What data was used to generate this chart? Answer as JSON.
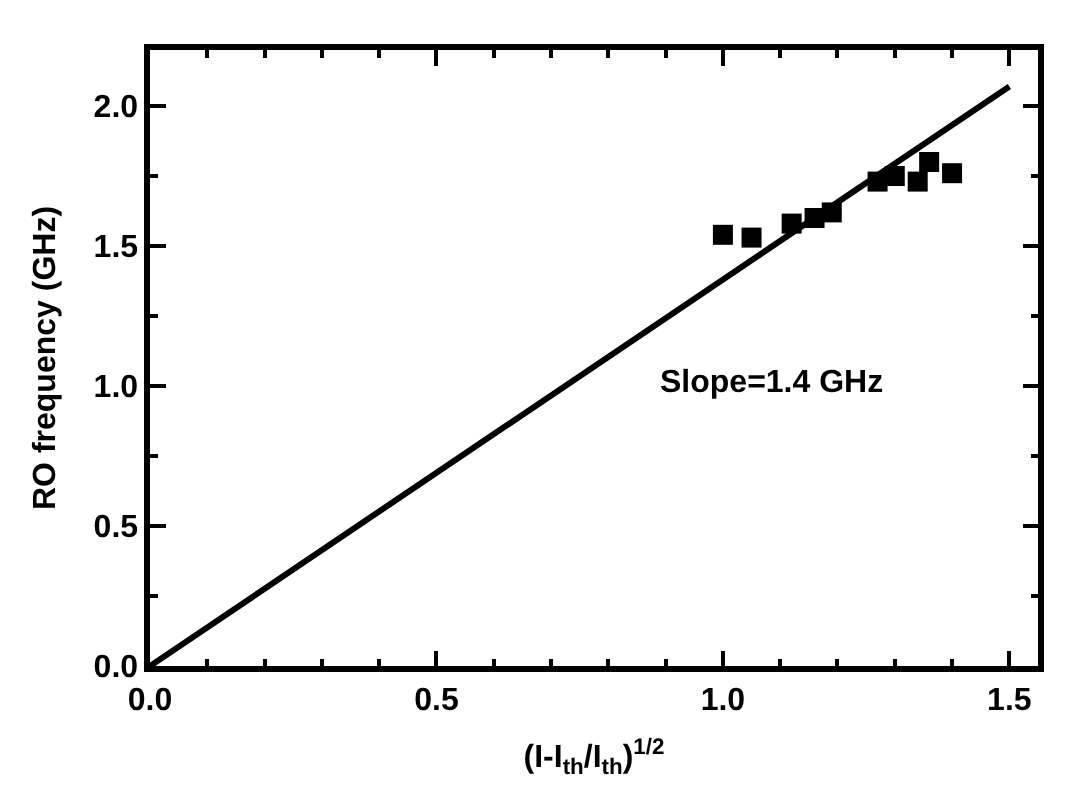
{
  "chart_data": {
    "type": "scatter",
    "xlabel": "(I-I$_{th}$/I$_{th}$)$^{1/2}$",
    "ylabel": "RO frequency (GHz)",
    "annotations": [
      "Slope=1.4 GHz"
    ],
    "series": [
      {
        "color": "#000000",
        "marker": "square",
        "x": [
          1.0,
          1.05,
          1.12,
          1.16,
          1.19,
          1.27,
          1.3,
          1.34,
          1.36,
          1.4
        ],
        "values": [
          1.54,
          1.53,
          1.58,
          1.6,
          1.62,
          1.73,
          1.75,
          1.73,
          1.8,
          1.76
        ]
      },
      {
        "type": "line",
        "color": "#000000",
        "marker": "none",
        "line_style": "solid",
        "x": [
          0.0,
          1.5
        ],
        "values": [
          0.0,
          2.07
        ]
      }
    ],
    "xlim": [
      0,
      1.55
    ],
    "ylim": [
      0,
      2.2
    ],
    "xticks": [
      {
        "value": 0.0,
        "label": "0.0"
      },
      {
        "value": 0.5,
        "label": "0.5"
      },
      {
        "value": 1.0,
        "label": "1.0"
      },
      {
        "value": 1.5,
        "label": "1.5"
      }
    ],
    "yticks": [
      {
        "value": 0.0,
        "label": "0.0"
      },
      {
        "value": 0.5,
        "label": "0.5"
      },
      {
        "value": 1.0,
        "label": "1.0"
      },
      {
        "value": 1.5,
        "label": "1.5"
      },
      {
        "value": 2.0,
        "label": "2.0"
      }
    ]
  }
}
